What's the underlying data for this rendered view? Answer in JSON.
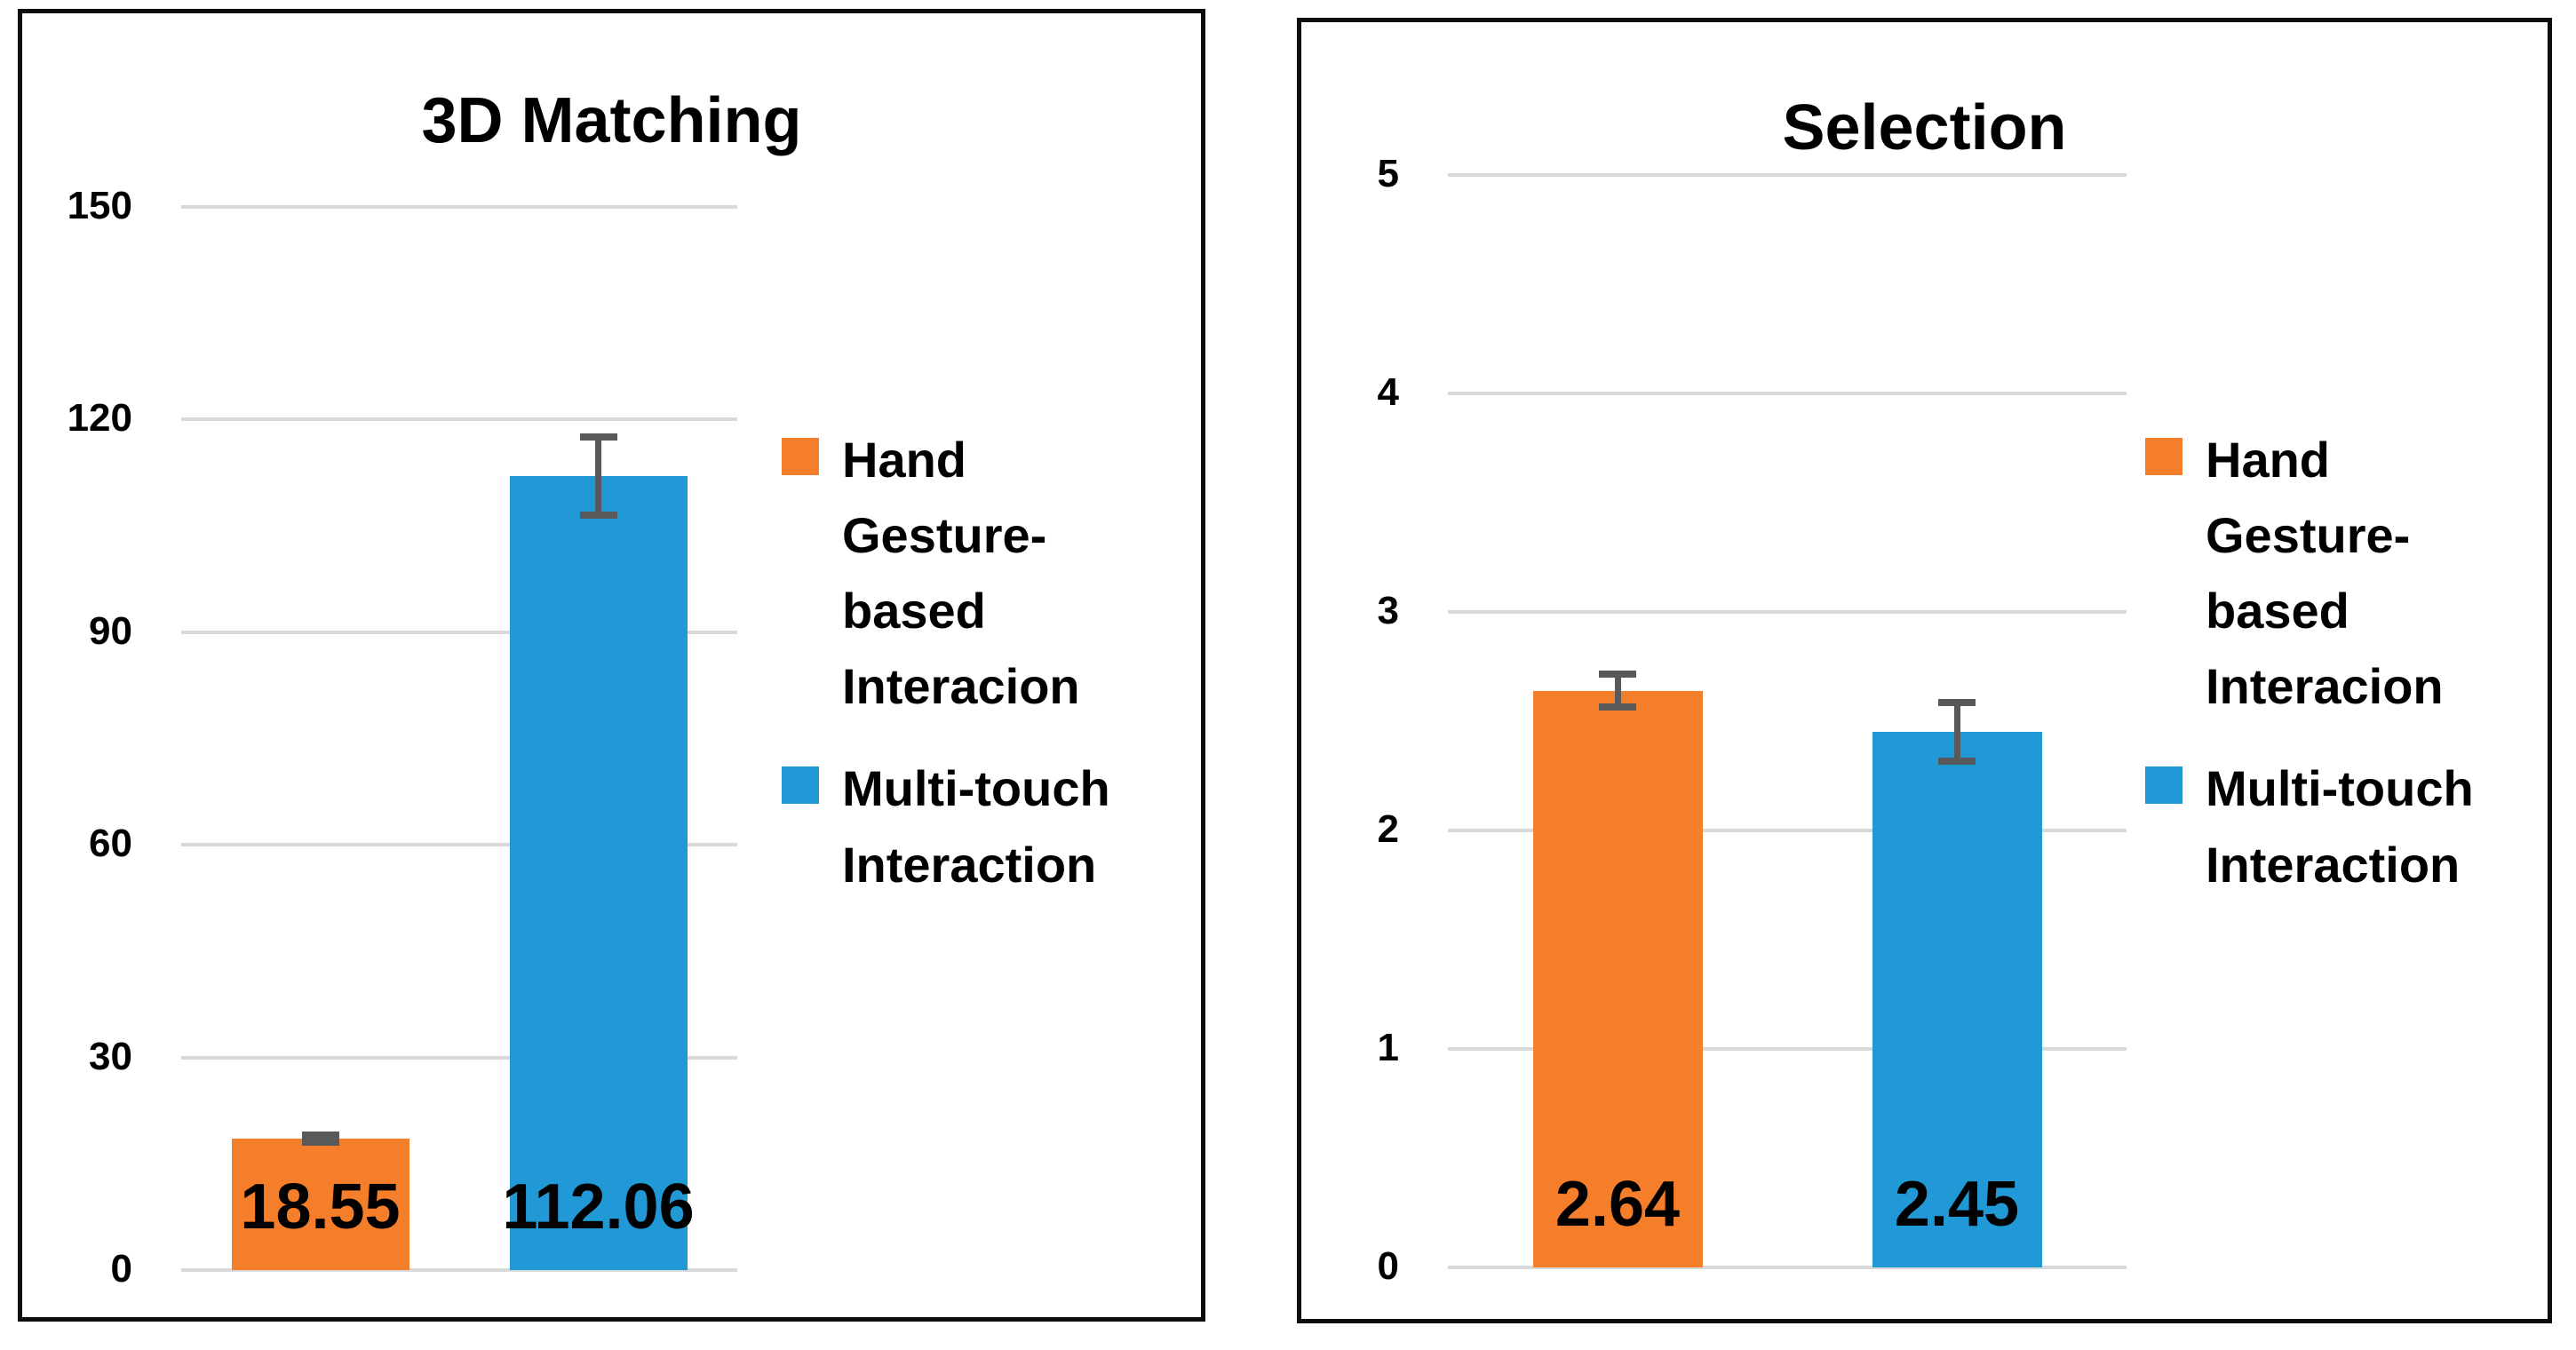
{
  "chart_data": [
    {
      "type": "bar",
      "title": "3D Matching",
      "categories": [
        "Hand Gesture-based Interacion",
        "Multi-touch Interaction"
      ],
      "values": [
        18.55,
        112.06
      ],
      "value_labels": [
        "18.55",
        "112.06"
      ],
      "errors": [
        1.0,
        6.0
      ],
      "colors": [
        "#f57e2b",
        "#2199d6"
      ],
      "ylim": [
        0,
        150
      ],
      "ytick_step": 30,
      "ytick_labels": [
        "0",
        "30",
        "60",
        "90",
        "120",
        "150"
      ],
      "grid": true,
      "legend": {
        "position": "right",
        "entries": [
          {
            "label": "Hand Gesture-based Interacion",
            "wrapped_lines": [
              "Hand",
              "Gesture-",
              "based",
              "Interacion"
            ],
            "color": "#f57e2b"
          },
          {
            "label": "Multi-touch Interaction",
            "wrapped_lines": [
              "Multi-touch",
              "Interaction"
            ],
            "color": "#2199d6"
          }
        ]
      }
    },
    {
      "type": "bar",
      "title": "Selection",
      "categories": [
        "Hand Gesture-based Interacion",
        "Multi-touch Interaction"
      ],
      "values": [
        2.64,
        2.45
      ],
      "value_labels": [
        "2.64",
        "2.45"
      ],
      "errors": [
        0.09,
        0.15
      ],
      "colors": [
        "#f57e2b",
        "#2199d6"
      ],
      "ylim": [
        0,
        5
      ],
      "ytick_step": 1,
      "ytick_labels": [
        "0",
        "1",
        "2",
        "3",
        "4",
        "5"
      ],
      "grid": true,
      "legend": {
        "position": "right",
        "entries": [
          {
            "label": "Hand Gesture-based Interacion",
            "wrapped_lines": [
              "Hand",
              "Gesture-",
              "based",
              "Interacion"
            ],
            "color": "#f57e2b"
          },
          {
            "label": "Multi-touch Interaction",
            "wrapped_lines": [
              "Multi-touch",
              "Interaction"
            ],
            "color": "#2199d6"
          }
        ]
      }
    }
  ],
  "colors": {
    "series_orange": "#f57e2b",
    "series_blue": "#2199d6",
    "gridline": "#d9d9d9",
    "error_bar": "#58595b",
    "border": "#0d0d0d"
  }
}
